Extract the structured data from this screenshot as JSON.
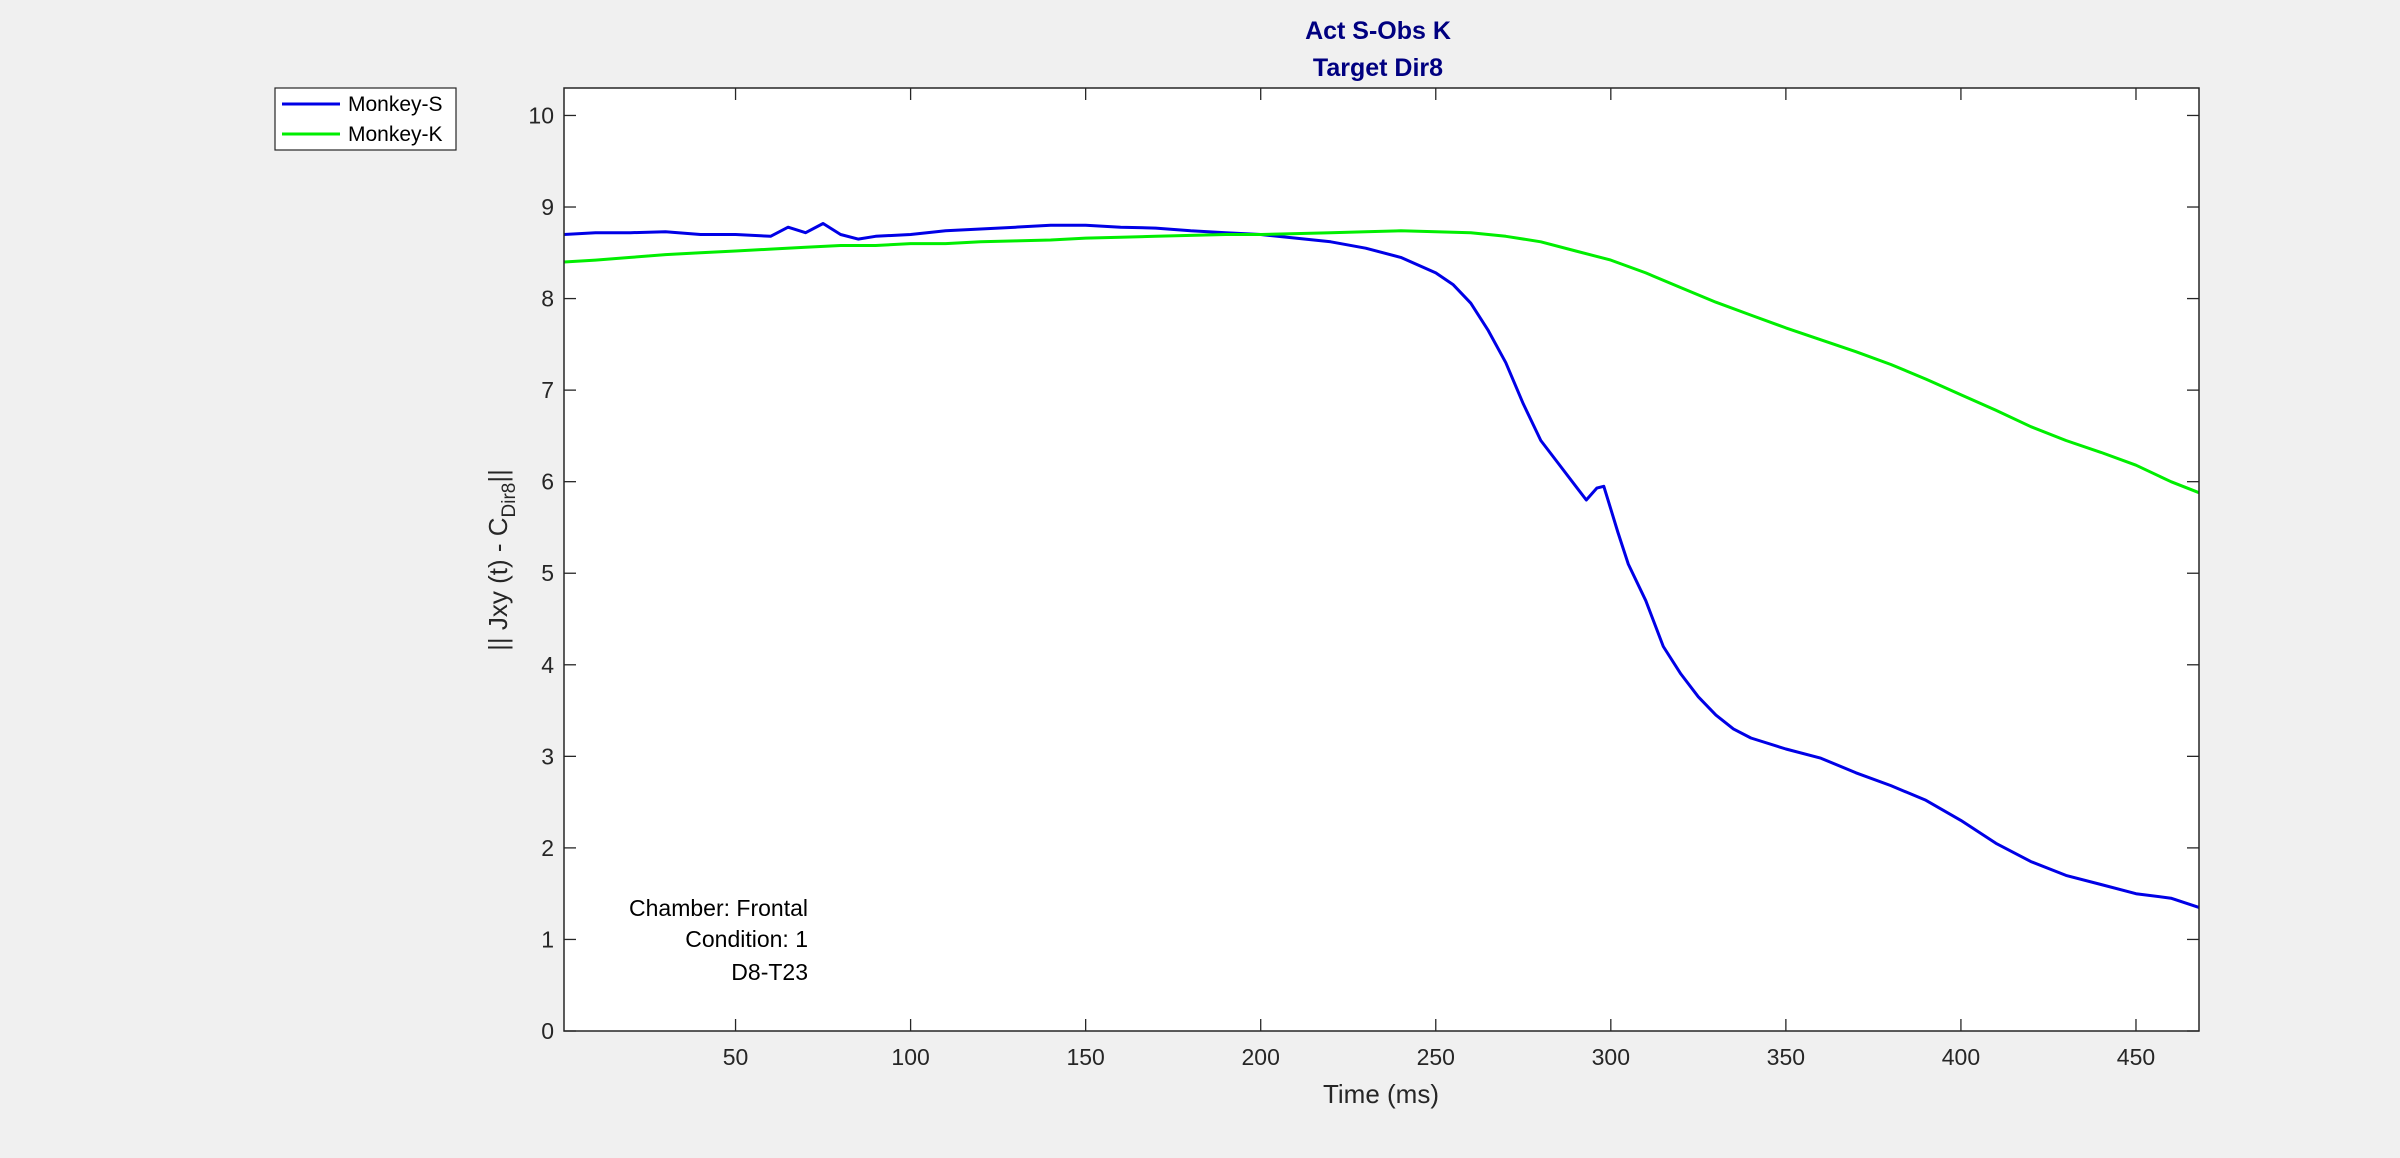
{
  "chart_data": {
    "type": "line",
    "title": "Act S-Obs K",
    "subtitle": "Target Dir8",
    "xlabel": "Time (ms)",
    "ylabel_main": "|| Jxy (t) - C",
    "ylabel_sub": "Dir8",
    "ylabel_end": "||",
    "xlim": [
      1,
      468
    ],
    "ylim": [
      0,
      10.3
    ],
    "xticks": [
      50,
      100,
      150,
      200,
      250,
      300,
      350,
      400,
      450
    ],
    "yticks": [
      0,
      1,
      2,
      3,
      4,
      5,
      6,
      7,
      8,
      9,
      10
    ],
    "grid": false,
    "legend_position": "outside-top-left",
    "annotations": [
      "Chamber: Frontal",
      "Condition: 1",
      "D8-T23"
    ],
    "series": [
      {
        "name": "Monkey-S",
        "color": "#0000e6",
        "x": [
          1,
          10,
          20,
          30,
          40,
          50,
          60,
          65,
          70,
          75,
          80,
          85,
          90,
          100,
          110,
          120,
          130,
          140,
          150,
          160,
          170,
          180,
          190,
          200,
          210,
          220,
          230,
          240,
          250,
          255,
          260,
          265,
          270,
          275,
          280,
          285,
          290,
          293,
          296,
          298,
          300,
          302,
          305,
          310,
          315,
          320,
          325,
          330,
          335,
          340,
          350,
          360,
          370,
          380,
          390,
          400,
          410,
          420,
          430,
          440,
          450,
          460,
          468
        ],
        "y": [
          8.7,
          8.72,
          8.72,
          8.73,
          8.7,
          8.7,
          8.68,
          8.78,
          8.72,
          8.82,
          8.7,
          8.65,
          8.68,
          8.7,
          8.74,
          8.76,
          8.78,
          8.8,
          8.8,
          8.78,
          8.77,
          8.74,
          8.72,
          8.7,
          8.66,
          8.62,
          8.55,
          8.45,
          8.28,
          8.15,
          7.95,
          7.65,
          7.3,
          6.85,
          6.45,
          6.2,
          5.95,
          5.8,
          5.93,
          5.95,
          5.7,
          5.45,
          5.1,
          4.7,
          4.2,
          3.9,
          3.65,
          3.45,
          3.3,
          3.2,
          3.08,
          2.98,
          2.82,
          2.68,
          2.52,
          2.3,
          2.05,
          1.85,
          1.7,
          1.6,
          1.5,
          1.45,
          1.35
        ]
      },
      {
        "name": "Monkey-K",
        "color": "#00ee00",
        "x": [
          1,
          10,
          20,
          30,
          40,
          50,
          60,
          70,
          80,
          90,
          100,
          110,
          120,
          130,
          140,
          150,
          160,
          170,
          180,
          190,
          200,
          210,
          220,
          230,
          240,
          250,
          260,
          270,
          280,
          290,
          300,
          310,
          320,
          330,
          340,
          350,
          360,
          370,
          380,
          390,
          400,
          410,
          420,
          430,
          440,
          450,
          460,
          468
        ],
        "y": [
          8.4,
          8.42,
          8.45,
          8.48,
          8.5,
          8.52,
          8.54,
          8.56,
          8.58,
          8.58,
          8.6,
          8.6,
          8.62,
          8.63,
          8.64,
          8.66,
          8.67,
          8.68,
          8.69,
          8.7,
          8.7,
          8.71,
          8.72,
          8.73,
          8.74,
          8.73,
          8.72,
          8.68,
          8.62,
          8.52,
          8.42,
          8.28,
          8.12,
          7.96,
          7.82,
          7.68,
          7.55,
          7.42,
          7.28,
          7.12,
          6.95,
          6.78,
          6.6,
          6.45,
          6.32,
          6.18,
          6.0,
          5.88
        ]
      }
    ]
  }
}
